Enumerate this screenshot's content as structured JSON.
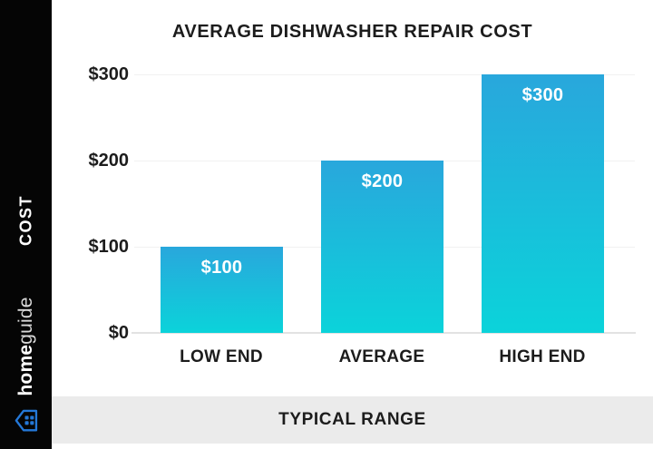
{
  "meta": {
    "sidebar_bg": "#050505",
    "footer_bg": "#ebebeb",
    "logo_blue": "#2478d8",
    "text_color": "#1c1c1c"
  },
  "sidebar": {
    "axis_label": "COST",
    "brand": {
      "name_bold": "home",
      "name_light": "guide"
    }
  },
  "header": {
    "title": "AVERAGE DISHWASHER REPAIR COST"
  },
  "footer": {
    "label": "TYPICAL RANGE"
  },
  "chart_data": {
    "type": "bar",
    "title": "AVERAGE DISHWASHER REPAIR COST",
    "categories": [
      "LOW END",
      "AVERAGE",
      "HIGH END"
    ],
    "values": [
      100,
      200,
      300
    ],
    "bar_labels": [
      "$100",
      "$200",
      "$300"
    ],
    "ylabel": "COST",
    "xlabel": "TYPICAL RANGE",
    "ylim": [
      0,
      300
    ],
    "yticks": [
      0,
      100,
      200,
      300
    ],
    "ytick_labels": [
      "$0",
      "$100",
      "$200",
      "$300"
    ],
    "grid": "horizontal-light",
    "legend": "none",
    "bar_gradient_top": "#29a7dc",
    "bar_gradient_bottom": "#0bd3da"
  }
}
